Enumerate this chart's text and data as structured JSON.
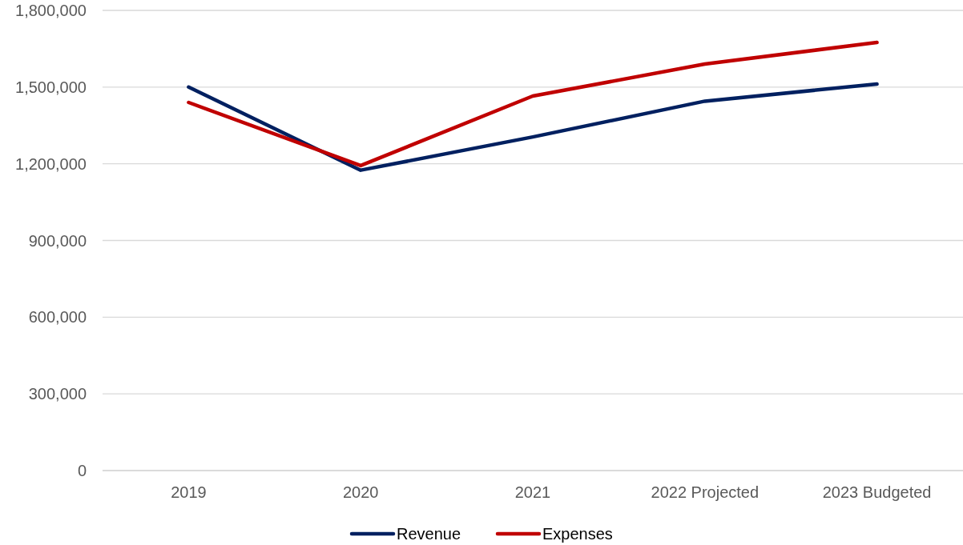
{
  "chart_data": {
    "type": "line",
    "categories": [
      "2019",
      "2020",
      "2021",
      "2022 Projected",
      "2023 Budgeted"
    ],
    "series": [
      {
        "name": "Revenue",
        "color": "#002060",
        "values": [
          1500000,
          1175000,
          1305000,
          1445000,
          1512000
        ]
      },
      {
        "name": "Expenses",
        "color": "#c00000",
        "values": [
          1440000,
          1193000,
          1465000,
          1590000,
          1675000
        ]
      }
    ],
    "ylim": [
      0,
      1800000
    ],
    "yticks": [
      {
        "value": 0,
        "label": "0"
      },
      {
        "value": 300000,
        "label": "300,000"
      },
      {
        "value": 600000,
        "label": "600,000"
      },
      {
        "value": 900000,
        "label": "900,000"
      },
      {
        "value": 1200000,
        "label": "1,200,000"
      },
      {
        "value": 1500000,
        "label": "1,500,000"
      },
      {
        "value": 1800000,
        "label": "1,800,000"
      }
    ],
    "grid": "y",
    "legend": "bottom",
    "marker": "none",
    "line_style": "solid"
  }
}
